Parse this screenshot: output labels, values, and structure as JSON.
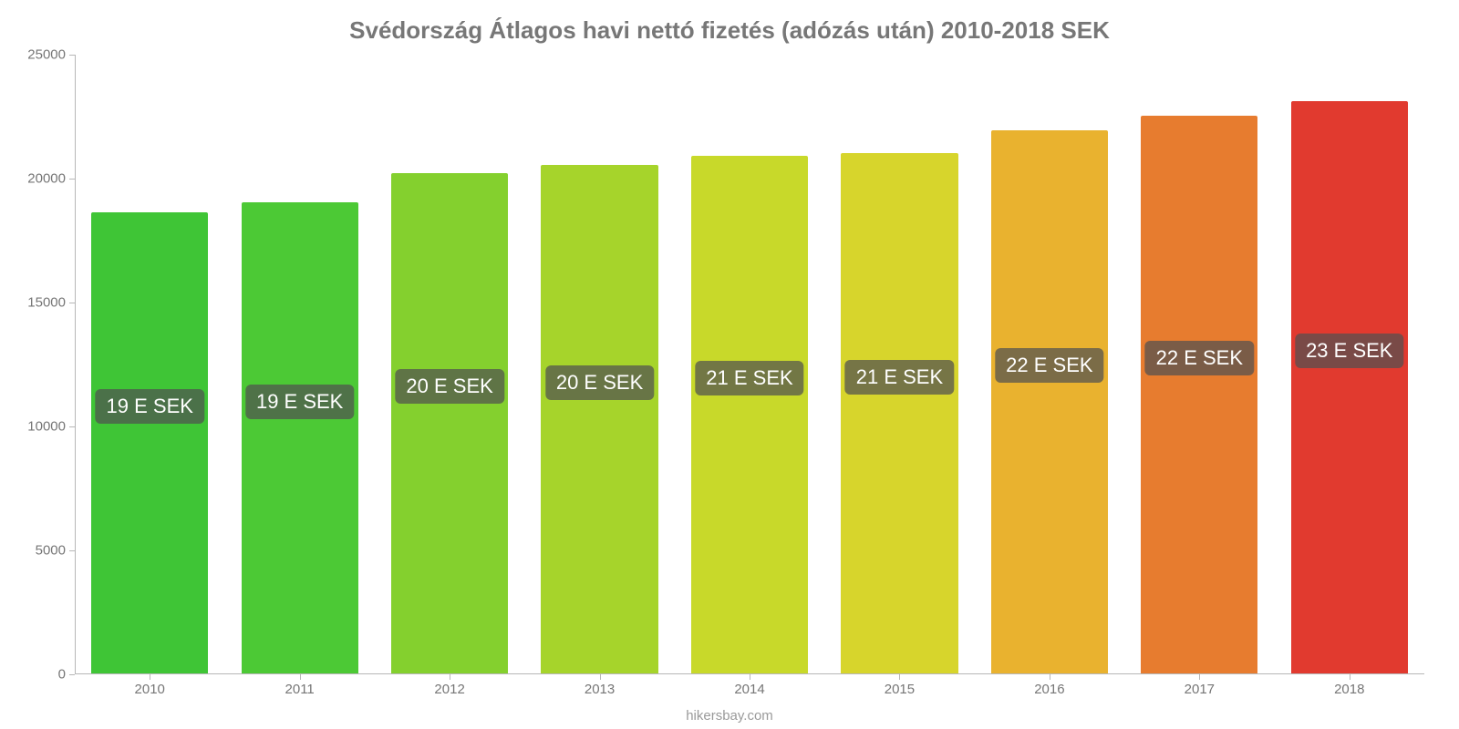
{
  "chart": {
    "type": "bar",
    "title": "Svédország Átlagos havi nettó fizetés (adózás után) 2010-2018 SEK",
    "title_fontsize": 26,
    "title_color": "#777777",
    "source": "hikersbay.com",
    "background_color": "#ffffff",
    "axis_color": "#b7b7b7",
    "tick_label_color": "#767676",
    "tick_label_fontsize": 15,
    "badge_bg": "rgba(80,80,80,0.72)",
    "badge_text_color": "#ffffff",
    "badge_fontsize": 22,
    "ylim": [
      0,
      25000
    ],
    "ytick_step": 5000,
    "yticks": [
      0,
      5000,
      10000,
      15000,
      20000,
      25000
    ],
    "bar_width": 0.78,
    "categories": [
      "2010",
      "2011",
      "2012",
      "2013",
      "2014",
      "2015",
      "2016",
      "2017",
      "2018"
    ],
    "values": [
      18600,
      19000,
      20200,
      20500,
      20900,
      21000,
      21900,
      22500,
      23100
    ],
    "bar_colors": [
      "#3fc536",
      "#4cc935",
      "#84d02e",
      "#a6d42b",
      "#c8d92a",
      "#d7d52c",
      "#e9b22f",
      "#e77c2f",
      "#e13a2f"
    ],
    "badge_labels": [
      "19 E SEK",
      "19 E SEK",
      "20 E SEK",
      "20 E SEK",
      "21 E SEK",
      "21 E SEK",
      "22 E SEK",
      "22 E SEK",
      "23 E SEK"
    ]
  }
}
